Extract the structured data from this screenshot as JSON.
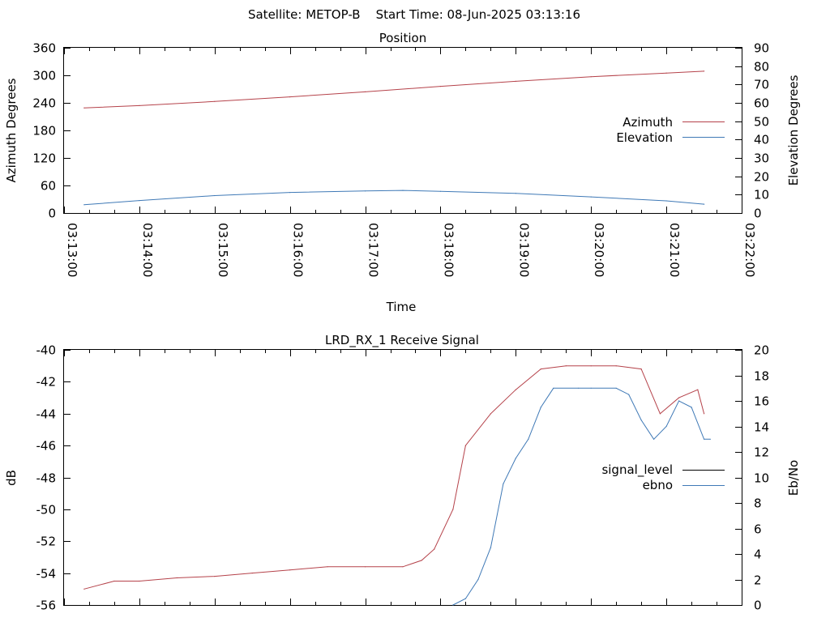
{
  "header": {
    "title": "Satellite: METOP-B    Start Time: 08-Jun-2025 03:13:16"
  },
  "chart_data": [
    {
      "type": "line",
      "title": "Position",
      "xlabel": "Time",
      "ylabel": "Azimuth Degrees",
      "y2label": "Elevation Degrees",
      "x_ticks": [
        "03:13:00",
        "03:14:00",
        "03:15:00",
        "03:16:00",
        "03:17:00",
        "03:18:00",
        "03:19:00",
        "03:20:00",
        "03:21:00",
        "03:22:00"
      ],
      "y_ticks": [
        "0",
        "60",
        "120",
        "180",
        "240",
        "300",
        "360"
      ],
      "y2_ticks": [
        "0",
        "10",
        "20",
        "30",
        "40",
        "50",
        "60",
        "70",
        "80",
        "90"
      ],
      "ylim": [
        0,
        360
      ],
      "y2lim": [
        0,
        90
      ],
      "xlim": [
        "03:13:00",
        "03:22:00"
      ],
      "legend_position": "right",
      "series": [
        {
          "name": "Azimuth",
          "axis": "y",
          "color": "#b5424a",
          "x": [
            "03:13:16",
            "03:14:00",
            "03:15:00",
            "03:16:00",
            "03:17:00",
            "03:18:00",
            "03:19:00",
            "03:20:00",
            "03:21:00",
            "03:21:30"
          ],
          "values": [
            229,
            234,
            243,
            253,
            264,
            276,
            287,
            297,
            305,
            309
          ]
        },
        {
          "name": "Elevation",
          "axis": "y2",
          "color": "#3f79b6",
          "x": [
            "03:13:16",
            "03:14:00",
            "03:15:00",
            "03:16:00",
            "03:17:00",
            "03:17:30",
            "03:18:00",
            "03:19:00",
            "03:20:00",
            "03:21:00",
            "03:21:30"
          ],
          "values": [
            4.5,
            6.8,
            9.5,
            11.2,
            12.0,
            12.3,
            11.8,
            10.7,
            8.8,
            6.6,
            4.8
          ]
        }
      ]
    },
    {
      "type": "line",
      "title": "LRD_RX_1 Receive Signal",
      "xlabel": "",
      "ylabel": "dB",
      "y2label": "Eb/No",
      "y_ticks": [
        "-40",
        "-42",
        "-44",
        "-46",
        "-48",
        "-50",
        "-52",
        "-54",
        "-56"
      ],
      "y2_ticks": [
        "0",
        "2",
        "4",
        "6",
        "8",
        "10",
        "12",
        "14",
        "16",
        "18",
        "20"
      ],
      "ylim": [
        -56,
        -40
      ],
      "y2lim": [
        0,
        20
      ],
      "xlim": [
        "03:13:00",
        "03:22:00"
      ],
      "legend_position": "right",
      "legend": [
        {
          "name": "signal_level",
          "color": "#000000"
        },
        {
          "name": "ebno",
          "color": "#3f79b6"
        }
      ],
      "series": [
        {
          "name": "signal_level",
          "axis": "y",
          "color": "#b5424a",
          "note_color_high": "#22aa22",
          "x": [
            "03:13:16",
            "03:13:40",
            "03:14:00",
            "03:14:30",
            "03:15:00",
            "03:15:30",
            "03:16:00",
            "03:16:30",
            "03:17:00",
            "03:17:30",
            "03:17:45",
            "03:17:55",
            "03:18:10",
            "03:18:20",
            "03:18:40",
            "03:19:00",
            "03:19:20",
            "03:19:40",
            "03:20:00",
            "03:20:20",
            "03:20:40",
            "03:20:55",
            "03:21:10",
            "03:21:25",
            "03:21:30"
          ],
          "values": [
            -55.0,
            -54.5,
            -54.5,
            -54.3,
            -54.2,
            -54.0,
            -53.8,
            -53.6,
            -53.6,
            -53.6,
            -53.2,
            -52.5,
            -50.0,
            -46.0,
            -44.0,
            -42.5,
            -41.2,
            -41.0,
            -41.0,
            -41.0,
            -41.2,
            -44.0,
            -43.0,
            -42.5,
            -44.0
          ]
        },
        {
          "name": "ebno",
          "axis": "y2",
          "color": "#3f79b6",
          "x": [
            "03:18:10",
            "03:18:20",
            "03:18:30",
            "03:18:40",
            "03:18:50",
            "03:19:00",
            "03:19:10",
            "03:19:20",
            "03:19:30",
            "03:19:50",
            "03:20:00",
            "03:20:20",
            "03:20:30",
            "03:20:40",
            "03:20:50",
            "03:21:00",
            "03:21:10",
            "03:21:20",
            "03:21:30",
            "03:21:35"
          ],
          "values": [
            0,
            0.5,
            2.0,
            4.5,
            9.5,
            11.5,
            13.0,
            15.5,
            17.0,
            17.0,
            17.0,
            17.0,
            16.5,
            14.5,
            13.0,
            14.0,
            16.0,
            15.5,
            13.0,
            13.0
          ]
        }
      ]
    }
  ]
}
